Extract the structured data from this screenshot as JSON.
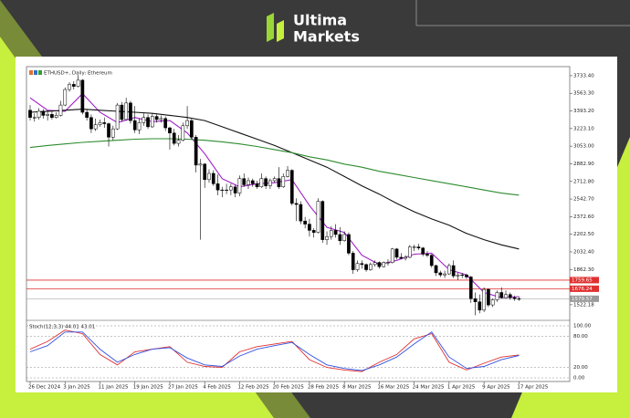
{
  "header": {
    "brand_line1": "Ultima",
    "brand_line2": "Markets"
  },
  "chart_data": {
    "type": "candlestick",
    "title": "ETHUSD+, Daily: Ethereum",
    "categories": [
      "26 Dec 2024",
      null,
      null,
      null,
      null,
      null,
      null,
      null,
      "3 Jan 2025",
      null,
      null,
      null,
      null,
      null,
      null,
      null,
      "11 Jan 2025",
      null,
      null,
      null,
      null,
      null,
      null,
      null,
      "19 Jan 2025",
      null,
      null,
      null,
      null,
      null,
      null,
      null,
      "27 Jan 2025",
      null,
      null,
      null,
      null,
      null,
      null,
      null,
      "4 Feb 2025",
      null,
      null,
      null,
      null,
      null,
      null,
      null,
      "12 Feb 2025",
      null,
      null,
      null,
      null,
      null,
      null,
      null,
      "20 Feb 2025",
      null,
      null,
      null,
      null,
      null,
      null,
      null,
      "28 Feb 2025",
      null,
      null,
      null,
      null,
      null,
      null,
      null,
      "8 Mar 2025",
      null,
      null,
      null,
      null,
      null,
      null,
      null,
      "16 Mar 2025",
      null,
      null,
      null,
      null,
      null,
      null,
      null,
      "24 Mar 2025",
      null,
      null,
      null,
      null,
      null,
      null,
      null,
      "1 Apr 2025",
      null,
      null,
      null,
      null,
      null,
      null,
      null,
      "9 Apr 2025",
      null,
      null,
      null,
      null,
      null,
      null,
      null,
      "17 Apr 2025"
    ],
    "ohlc": [
      [
        3400,
        3450,
        3300,
        3330
      ],
      [
        3330,
        3370,
        3290,
        3330
      ],
      [
        3330,
        3420,
        3310,
        3390
      ],
      [
        3390,
        3410,
        3320,
        3350
      ],
      [
        3350,
        3400,
        3300,
        3360
      ],
      [
        3360,
        3390,
        3310,
        3330
      ],
      [
        3330,
        3380,
        3320,
        3350
      ],
      [
        3350,
        3490,
        3340,
        3450
      ],
      [
        3450,
        3620,
        3440,
        3600
      ],
      [
        3600,
        3670,
        3580,
        3650
      ],
      [
        3650,
        3680,
        3600,
        3630
      ],
      [
        3630,
        3740,
        3620,
        3690
      ],
      [
        3690,
        3700,
        3360,
        3380
      ],
      [
        3380,
        3410,
        3300,
        3330
      ],
      [
        3330,
        3360,
        3180,
        3220
      ],
      [
        3220,
        3320,
        3200,
        3260
      ],
      [
        3260,
        3310,
        3240,
        3280
      ],
      [
        3280,
        3330,
        3230,
        3270
      ],
      [
        3270,
        3280,
        3050,
        3140
      ],
      [
        3140,
        3250,
        3110,
        3220
      ],
      [
        3220,
        3470,
        3210,
        3450
      ],
      [
        3450,
        3480,
        3290,
        3310
      ],
      [
        3310,
        3520,
        3300,
        3470
      ],
      [
        3470,
        3490,
        3270,
        3300
      ],
      [
        3300,
        3440,
        3180,
        3210
      ],
      [
        3210,
        3320,
        3170,
        3280
      ],
      [
        3280,
        3370,
        3250,
        3330
      ],
      [
        3330,
        3360,
        3220,
        3240
      ],
      [
        3240,
        3370,
        3230,
        3340
      ],
      [
        3340,
        3360,
        3280,
        3310
      ],
      [
        3310,
        3350,
        3280,
        3320
      ],
      [
        3320,
        3340,
        3200,
        3230
      ],
      [
        3230,
        3240,
        3020,
        3180
      ],
      [
        3180,
        3220,
        3060,
        3080
      ],
      [
        3080,
        3160,
        3050,
        3110
      ],
      [
        3110,
        3280,
        3100,
        3250
      ],
      [
        3250,
        3440,
        3220,
        3300
      ],
      [
        3300,
        3320,
        3120,
        3140
      ],
      [
        3140,
        3160,
        2800,
        2870
      ],
      [
        2870,
        2930,
        2150,
        2880
      ],
      [
        2880,
        2890,
        2650,
        2730
      ],
      [
        2730,
        2830,
        2700,
        2790
      ],
      [
        2790,
        2820,
        2670,
        2690
      ],
      [
        2690,
        2780,
        2580,
        2630
      ],
      [
        2630,
        2660,
        2560,
        2630
      ],
      [
        2630,
        2690,
        2590,
        2630
      ],
      [
        2630,
        2690,
        2580,
        2660
      ],
      [
        2660,
        2680,
        2560,
        2600
      ],
      [
        2600,
        2770,
        2570,
        2740
      ],
      [
        2740,
        2790,
        2660,
        2680
      ],
      [
        2680,
        2750,
        2640,
        2720
      ],
      [
        2720,
        2740,
        2660,
        2690
      ],
      [
        2690,
        2720,
        2640,
        2660
      ],
      [
        2660,
        2790,
        2650,
        2740
      ],
      [
        2740,
        2760,
        2640,
        2670
      ],
      [
        2670,
        2740,
        2640,
        2720
      ],
      [
        2720,
        2760,
        2700,
        2740
      ],
      [
        2740,
        2850,
        2640,
        2660
      ],
      [
        2660,
        2790,
        2650,
        2760
      ],
      [
        2760,
        2860,
        2750,
        2820
      ],
      [
        2820,
        2830,
        2480,
        2500
      ],
      [
        2500,
        2550,
        2330,
        2490
      ],
      [
        2490,
        2520,
        2300,
        2330
      ],
      [
        2330,
        2370,
        2260,
        2300
      ],
      [
        2300,
        2350,
        2180,
        2240
      ],
      [
        2240,
        2260,
        2170,
        2220
      ],
      [
        2220,
        2550,
        2210,
        2520
      ],
      [
        2520,
        2530,
        2120,
        2150
      ],
      [
        2150,
        2230,
        2100,
        2180
      ],
      [
        2180,
        2280,
        2150,
        2240
      ],
      [
        2240,
        2300,
        2170,
        2200
      ],
      [
        2200,
        2270,
        2100,
        2140
      ],
      [
        2140,
        2230,
        2130,
        2200
      ],
      [
        2200,
        2220,
        2000,
        2020
      ],
      [
        2020,
        2040,
        1820,
        1860
      ],
      [
        1860,
        1950,
        1840,
        1920
      ],
      [
        1920,
        1950,
        1870,
        1910
      ],
      [
        1910,
        1920,
        1840,
        1860
      ],
      [
        1860,
        1930,
        1850,
        1910
      ],
      [
        1910,
        1950,
        1890,
        1930
      ],
      [
        1930,
        1940,
        1870,
        1890
      ],
      [
        1890,
        1940,
        1880,
        1930
      ],
      [
        1930,
        1960,
        1900,
        1930
      ],
      [
        1930,
        2070,
        1920,
        2060
      ],
      [
        2060,
        2070,
        1960,
        1980
      ],
      [
        1980,
        2020,
        1960,
        1970
      ],
      [
        1970,
        2000,
        1950,
        1980
      ],
      [
        1980,
        2100,
        1970,
        2080
      ],
      [
        2080,
        2100,
        2040,
        2080
      ],
      [
        2080,
        2110,
        2050,
        2070
      ],
      [
        2070,
        2080,
        1990,
        2010
      ],
      [
        2010,
        2040,
        1980,
        2000
      ],
      [
        2000,
        2010,
        1880,
        1900
      ],
      [
        1900,
        1910,
        1800,
        1830
      ],
      [
        1830,
        1850,
        1790,
        1810
      ],
      [
        1810,
        1850,
        1780,
        1820
      ],
      [
        1820,
        1920,
        1810,
        1900
      ],
      [
        1900,
        1950,
        1780,
        1800
      ],
      [
        1800,
        1830,
        1760,
        1810
      ],
      [
        1810,
        1830,
        1780,
        1810
      ],
      [
        1810,
        1820,
        1770,
        1790
      ],
      [
        1790,
        1800,
        1540,
        1580
      ],
      [
        1580,
        1640,
        1420,
        1550
      ],
      [
        1550,
        1620,
        1440,
        1470
      ],
      [
        1470,
        1690,
        1450,
        1670
      ],
      [
        1670,
        1680,
        1500,
        1520
      ],
      [
        1520,
        1580,
        1500,
        1570
      ],
      [
        1570,
        1660,
        1550,
        1640
      ],
      [
        1640,
        1690,
        1580,
        1590
      ],
      [
        1590,
        1660,
        1580,
        1620
      ],
      [
        1620,
        1640,
        1570,
        1590
      ],
      [
        1590,
        1610,
        1560,
        1580
      ],
      [
        1580,
        1600,
        1560,
        1579.57
      ]
    ],
    "up_color": "#ffffff",
    "down_color": "#000000",
    "ylim": [
      1380,
      3821
    ],
    "yticks": [
      {
        "value": 3733.4,
        "label": "3733.40"
      },
      {
        "value": 3563.3,
        "label": "3563.30"
      },
      {
        "value": 3393.2,
        "label": "3393.20"
      },
      {
        "value": 3223.1,
        "label": "3223.10"
      },
      {
        "value": 3053,
        "label": "3053.00"
      },
      {
        "value": 2882.9,
        "label": "2882.90"
      },
      {
        "value": 2712.8,
        "label": "2712.80"
      },
      {
        "value": 2542.7,
        "label": "2542.70"
      },
      {
        "value": 2372.6,
        "label": "2372.60"
      },
      {
        "value": 2202.5,
        "label": "2202.50"
      },
      {
        "value": 2032.4,
        "label": "2032.40"
      },
      {
        "value": 1862.3,
        "label": "1862.30"
      },
      1522.18
    ],
    "overlay_x": [
      "26 Dec 2024",
      "30 Dec 2024",
      "3 Jan 2025",
      "7 Jan 2025",
      "11 Jan 2025",
      "15 Jan 2025",
      "19 Jan 2025",
      "23 Jan 2025",
      "27 Jan 2025",
      "31 Jan 2025",
      "4 Feb 2025",
      "8 Feb 2025",
      "12 Feb 2025",
      "16 Feb 2025",
      "20 Feb 2025",
      "24 Feb 2025",
      "28 Feb 2025",
      "4 Mar 2025",
      "8 Mar 2025",
      "12 Mar 2025",
      "16 Mar 2025",
      "20 Mar 2025",
      "24 Mar 2025",
      "28 Mar 2025",
      "1 Apr 2025",
      "5 Apr 2025",
      "9 Apr 2025",
      "13 Apr 2025",
      "17 Apr 2025"
    ],
    "lines": [
      {
        "color": "#a020c8",
        "values": [
          3520,
          3400,
          3390,
          3560,
          3380,
          3280,
          3330,
          3290,
          3300,
          3180,
          2980,
          2740,
          2660,
          2690,
          2700,
          2730,
          2480,
          2270,
          2220,
          2000,
          1910,
          1950,
          2010,
          2020,
          1860,
          1810,
          1640,
          1590,
          1600
        ]
      },
      {
        "color": "#111111",
        "values": [
          3380,
          3390,
          3400,
          3410,
          3400,
          3390,
          3380,
          3370,
          3350,
          3330,
          3300,
          3240,
          3180,
          3120,
          3060,
          2990,
          2920,
          2850,
          2760,
          2670,
          2590,
          2500,
          2420,
          2350,
          2290,
          2210,
          2150,
          2100,
          2060
        ]
      },
      {
        "color": "#2e8b2e",
        "values": [
          3040,
          3060,
          3075,
          3090,
          3100,
          3110,
          3120,
          3125,
          3125,
          3120,
          3110,
          3095,
          3075,
          3050,
          3020,
          2990,
          2950,
          2920,
          2880,
          2850,
          2810,
          2780,
          2750,
          2720,
          2690,
          2660,
          2630,
          2600,
          2580
        ]
      }
    ],
    "levels": {
      "color": "#e03030",
      "values": [
        1759.65,
        1676.24
      ]
    },
    "last_price": 1579.57,
    "indicator": {
      "title": "Stoch(12,3,3) 44.01 43.01",
      "ylim": [
        0,
        100
      ],
      "yticks": [
        {
          "value": 100,
          "label": "100.00"
        },
        {
          "value": 80,
          "label": "80.00"
        },
        {
          "value": 20,
          "label": "20.00"
        },
        {
          "value": 0,
          "label": "0.00"
        }
      ],
      "series": [
        {
          "color": "#e03030",
          "values": [
            55,
            70,
            92,
            85,
            45,
            25,
            50,
            55,
            60,
            30,
            22,
            20,
            50,
            60,
            65,
            70,
            35,
            20,
            15,
            12,
            30,
            45,
            75,
            85,
            30,
            15,
            28,
            40,
            44.01
          ]
        },
        {
          "color": "#3050e0",
          "values": [
            50,
            62,
            88,
            88,
            55,
            30,
            45,
            55,
            58,
            38,
            25,
            22,
            42,
            55,
            62,
            68,
            45,
            25,
            18,
            14,
            25,
            40,
            65,
            88,
            40,
            18,
            22,
            35,
            43.01
          ]
        }
      ]
    }
  }
}
